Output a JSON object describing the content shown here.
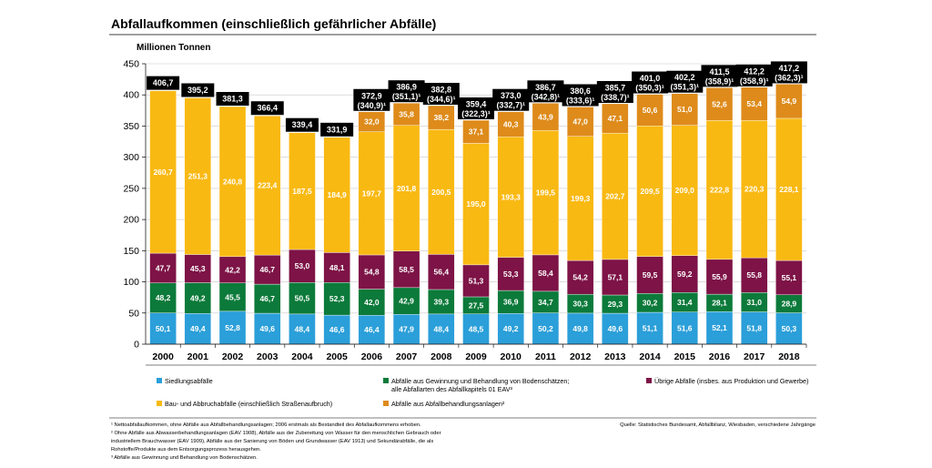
{
  "chart_data": {
    "type": "bar",
    "stacked": true,
    "title": "Abfallaufkommen (einschließlich gefährlicher Abfälle)",
    "ylabel": "Millionen Tonnen",
    "ylim": [
      0,
      450
    ],
    "yticks": [
      "0",
      "50",
      "100",
      "150",
      "200",
      "250",
      "300",
      "350",
      "400",
      "450"
    ],
    "grid": true,
    "categories": [
      "2000",
      "2001",
      "2002",
      "2003",
      "2004",
      "2005",
      "2006",
      "2007",
      "2008",
      "2009",
      "2010",
      "2011",
      "2012",
      "2013",
      "2014",
      "2015",
      "2016",
      "2017",
      "2018"
    ],
    "series": [
      {
        "name": "Siedlungsabfälle",
        "color": "#2b9fd9",
        "values": [
          50.1,
          49.4,
          52.8,
          49.6,
          48.4,
          46.6,
          46.4,
          47.9,
          48.4,
          48.5,
          49.2,
          50.2,
          49.8,
          49.6,
          51.1,
          51.6,
          52.1,
          51.8,
          50.3
        ],
        "labels": [
          "50,1",
          "49,4",
          "52,8",
          "49,6",
          "48,4",
          "46,6",
          "46,4",
          "47,9",
          "48,4",
          "48,5",
          "49,2",
          "50,2",
          "49,8",
          "49,6",
          "51,1",
          "51,6",
          "52,1",
          "51,8",
          "50,3"
        ]
      },
      {
        "name": "Abfälle aus Gewinnung und Behandlung von Bodenschätzen;",
        "name_line2": "alle Abfallarten des Abfallkapitels 01 EAV³",
        "color": "#0c7a3a",
        "values": [
          48.2,
          49.2,
          45.5,
          46.7,
          50.5,
          52.3,
          42.0,
          42.9,
          39.3,
          27.5,
          36.9,
          34.7,
          30.3,
          29.3,
          30.2,
          31.4,
          28.1,
          31.0,
          28.9
        ],
        "labels": [
          "48,2",
          "49,2",
          "45,5",
          "46,7",
          "50,5",
          "52,3",
          "42,0",
          "42,9",
          "39,3",
          "27,5",
          "36,9",
          "34,7",
          "30,3",
          "29,3",
          "30,2",
          "31,4",
          "28,1",
          "31,0",
          "28,9"
        ]
      },
      {
        "name": "Übrige Abfälle (insbes. aus Produktion und Gewerbe)",
        "color": "#7d1346",
        "values": [
          47.7,
          45.3,
          42.2,
          46.7,
          53.0,
          48.1,
          54.8,
          58.5,
          56.4,
          51.3,
          53.3,
          58.4,
          54.2,
          57.1,
          59.5,
          59.2,
          55.9,
          55.8,
          55.1
        ],
        "labels": [
          "47,7",
          "45,3",
          "42,2",
          "46,7",
          "53,0",
          "48,1",
          "54,8",
          "58,5",
          "56,4",
          "51,3",
          "53,3",
          "58,4",
          "54,2",
          "57,1",
          "59,5",
          "59,2",
          "55,9",
          "55,8",
          "55,1"
        ]
      },
      {
        "name": "Bau- und Abbruchabfälle (einschließlich Straßenaufbruch)",
        "color": "#f9b913",
        "values": [
          260.7,
          251.3,
          240.8,
          223.4,
          187.5,
          184.9,
          197.7,
          201.8,
          200.5,
          195.0,
          193.3,
          199.5,
          199.3,
          202.7,
          209.5,
          209.0,
          222.8,
          220.3,
          228.1
        ],
        "labels": [
          "260,7",
          "251,3",
          "240,8",
          "223,4",
          "187,5",
          "184,9",
          "197,7",
          "201,8",
          "200,5",
          "195,0",
          "193,3",
          "199,5",
          "199,3",
          "202,7",
          "209,5",
          "209,0",
          "222,8",
          "220,3",
          "228,1"
        ]
      },
      {
        "name": "Abfälle aus Abfallbehandlungsanlagen²",
        "color": "#de8b1b",
        "values": [
          0,
          0,
          0,
          0,
          0,
          0,
          32.0,
          35.8,
          38.2,
          37.1,
          40.3,
          43.9,
          47.0,
          47.1,
          50.6,
          51.0,
          52.6,
          53.4,
          54.9
        ],
        "labels": [
          "",
          "",
          "",
          "",
          "",
          "",
          "32,0",
          "35,8",
          "38,2",
          "37,1",
          "40,3",
          "43,9",
          "47,0",
          "47,1",
          "50,6",
          "51,0",
          "52,6",
          "53,4",
          "54,9"
        ]
      }
    ],
    "totals": [
      406.7,
      395.2,
      381.3,
      366.4,
      339.4,
      331.9,
      372.9,
      386.9,
      382.8,
      359.4,
      373.0,
      386.7,
      380.6,
      385.7,
      401.0,
      402.2,
      411.5,
      412.2,
      417.2
    ],
    "total_labels": [
      [
        "406,7"
      ],
      [
        "395,2"
      ],
      [
        "381,3"
      ],
      [
        "366,4"
      ],
      [
        "339,4"
      ],
      [
        "331,9"
      ],
      [
        "372,9",
        "(340,9)¹"
      ],
      [
        "386,9",
        "(351,1)¹"
      ],
      [
        "382,8",
        "(344,6)¹"
      ],
      [
        "359,4",
        "(322,3)¹"
      ],
      [
        "373,0",
        "(332,7)¹"
      ],
      [
        "386,7",
        "(342,8)¹"
      ],
      [
        "380,6",
        "(333,6)¹"
      ],
      [
        "385,7",
        "(338,7)¹"
      ],
      [
        "401,0",
        "(350,3)¹"
      ],
      [
        "402,2",
        "(351,3)¹"
      ],
      [
        "411,5",
        "(358,9)¹"
      ],
      [
        "412,2",
        "(358,9)¹"
      ],
      [
        "417,2",
        "(362,3)¹"
      ]
    ],
    "legend_position": "bottom"
  },
  "footnotes": [
    "¹ Nettoabfallaufkommen, ohne Abfälle aus Abfallbehandlungsanlagen; 2006 erstmals als Bestandteil des Abfallaufkommens erhoben.",
    "² Ohne Abfälle aus Abwasserbehandlungsanlagen (EAV 1908), Abfälle aus der Zubereitung von Wasser für den menschlichen Gebrauch oder",
    "industriellem Brauchwasser (EAV 1909), Abfälle aus der Sanierung von Böden und Grundwasser (EAV 1913) und Sekundärabfälle, die als",
    "Rohstoffe/Produkte aus dem Entsorgungsprozess herausgehen.",
    "³ Abfälle aus Gewinnung und Behandlung von Bodenschätzen."
  ],
  "source": "Quelle: Statistisches Bundesamt, Abfallbilanz, Wiesbaden, verschiedene Jahrgänge"
}
